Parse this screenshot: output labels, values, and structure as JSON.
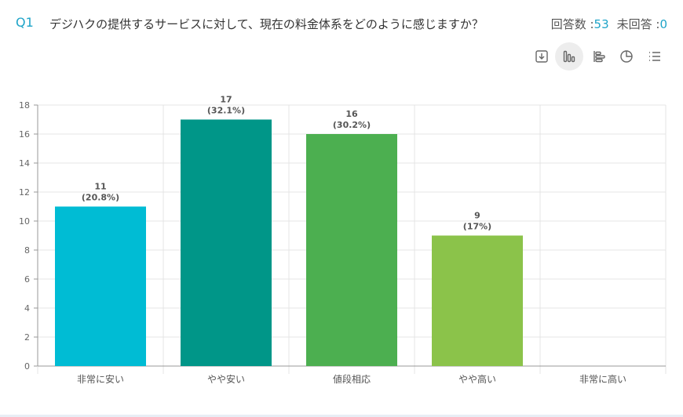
{
  "question": {
    "number": "Q1",
    "text": "デジハクの提供するサービスに対して、現在の料金体系をどのように感じますか？"
  },
  "stats": {
    "answered_label": "回答数 :",
    "answered_value": "53",
    "unanswered_label": "未回答 :",
    "unanswered_value": "0"
  },
  "toolbar": {
    "icons": [
      "download-icon",
      "bar-chart-icon",
      "horizontal-bar-chart-icon",
      "pie-chart-icon",
      "list-icon"
    ],
    "active": "bar-chart-icon"
  },
  "chart_data": {
    "type": "bar",
    "categories": [
      "非常に安い",
      "やや安い",
      "値段相応",
      "やや高い",
      "非常に高い"
    ],
    "values": [
      11,
      17,
      16,
      9,
      0
    ],
    "value_labels": [
      "11",
      "17",
      "16",
      "9",
      ""
    ],
    "percent_labels": [
      "(20.8%)",
      "(32.1%)",
      "(30.2%)",
      "(17%)",
      ""
    ],
    "colors": [
      "#00bcd4",
      "#009688",
      "#4caf50",
      "#8bc34a",
      "#cddc39"
    ],
    "yticks": [
      0,
      2,
      4,
      6,
      8,
      10,
      12,
      14,
      16,
      18
    ],
    "ylim": [
      0,
      18
    ],
    "grid": true,
    "title": "",
    "xlabel": "",
    "ylabel": ""
  }
}
